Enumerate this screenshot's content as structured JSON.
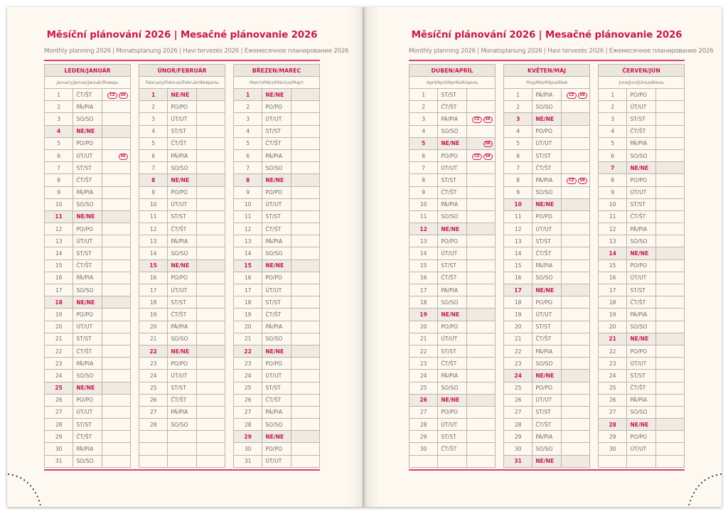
{
  "left_page": {
    "title": "Měsíční plánování 2026 | Mesačné plánovanie 2026",
    "subtitle": "Monthly planning 2026 | Monatsplanung 2026 | Havi tervezés 2026 | Ежемесячное планирование 2026"
  },
  "right_page": {
    "title": "Měsíční plánování 2026 | Mesačné plánovanie 2026",
    "subtitle": "Monthly planning 2026 | Monatsplanung 2026 | Havi tervezés 2026 | Ежемесячное планирование 2026"
  },
  "sunday_label": "NE/NE",
  "colors": {
    "accent": "#c8184f",
    "grid": "#bcb5aa",
    "paper": "#fdf9f0",
    "shade": "#efebe3"
  },
  "months": [
    {
      "name": "LEDEN/JANUÁR",
      "translations": "January/Januar/Január/Январь",
      "days": [
        "ČT/ŠT",
        "PÁ/PIA",
        "SO/SO",
        "NE/NE",
        "PO/PO",
        "ÚT/UT",
        "ST/ST",
        "ČT/ŠT",
        "PÁ/PIA",
        "SO/SO",
        "NE/NE",
        "PO/PO",
        "ÚT/UT",
        "ST/ST",
        "ČT/ŠT",
        "PÁ/PIA",
        "SO/SO",
        "NE/NE",
        "PO/PO",
        "ÚT/UT",
        "ST/ST",
        "ČT/ŠT",
        "PÁ/PIA",
        "SO/SO",
        "NE/NE",
        "PO/PO",
        "ÚT/UT",
        "ST/ST",
        "ČT/ŠT",
        "PÁ/PIA",
        "SO/SO"
      ],
      "holidays": {
        "1": [
          "CZ",
          "SK"
        ],
        "6": [
          "SK"
        ]
      }
    },
    {
      "name": "ÚNOR/FEBRUÁR",
      "translations": "February/Februar/Február/Февраль",
      "days": [
        "NE/NE",
        "PO/PO",
        "ÚT/UT",
        "ST/ST",
        "ČT/ŠT",
        "PÁ/PIA",
        "SO/SO",
        "NE/NE",
        "PO/PO",
        "ÚT/UT",
        "ST/ST",
        "ČT/ŠT",
        "PÁ/PIA",
        "SO/SO",
        "NE/NE",
        "PO/PO",
        "ÚT/UT",
        "ST/ST",
        "ČT/ŠT",
        "PÁ/PIA",
        "SO/SO",
        "NE/NE",
        "PO/PO",
        "ÚT/UT",
        "ST/ST",
        "ČT/ŠT",
        "PÁ/PIA",
        "SO/SO"
      ],
      "holidays": {}
    },
    {
      "name": "BŘEZEN/MAREC",
      "translations": "March/März/Március/Март",
      "days": [
        "NE/NE",
        "PO/PO",
        "ÚT/UT",
        "ST/ST",
        "ČT/ŠT",
        "PÁ/PIA",
        "SO/SO",
        "NE/NE",
        "PO/PO",
        "ÚT/UT",
        "ST/ST",
        "ČT/ŠT",
        "PÁ/PIA",
        "SO/SO",
        "NE/NE",
        "PO/PO",
        "ÚT/UT",
        "ST/ST",
        "ČT/ŠT",
        "PÁ/PIA",
        "SO/SO",
        "NE/NE",
        "PO/PO",
        "ÚT/UT",
        "ST/ST",
        "ČT/ŠT",
        "PÁ/PIA",
        "SO/SO",
        "NE/NE",
        "PO/PO",
        "ÚT/UT"
      ],
      "holidays": {}
    },
    {
      "name": "DUBEN/APRÍL",
      "translations": "April/April/Április/Апрель",
      "days": [
        "ST/ST",
        "ČT/ŠT",
        "PÁ/PIA",
        "SO/SO",
        "NE/NE",
        "PO/PO",
        "ÚT/UT",
        "ST/ST",
        "ČT/ŠT",
        "PÁ/PIA",
        "SO/SO",
        "NE/NE",
        "PO/PO",
        "ÚT/UT",
        "ST/ST",
        "ČT/ŠT",
        "PÁ/PIA",
        "SO/SO",
        "NE/NE",
        "PO/PO",
        "ÚT/UT",
        "ST/ST",
        "ČT/ŠT",
        "PÁ/PIA",
        "SO/SO",
        "NE/NE",
        "PO/PO",
        "ÚT/UT",
        "ST/ST",
        "ČT/ŠT"
      ],
      "holidays": {
        "3": [
          "CZ",
          "SK"
        ],
        "5": [
          "SK"
        ],
        "6": [
          "CZ",
          "SK"
        ]
      }
    },
    {
      "name": "KVĚTEN/MÁJ",
      "translations": "May/Mai/Május/Май",
      "days": [
        "PÁ/PIA",
        "SO/SO",
        "NE/NE",
        "PO/PO",
        "ÚT/UT",
        "ST/ST",
        "ČT/ŠT",
        "PÁ/PIA",
        "SO/SO",
        "NE/NE",
        "PO/PO",
        "ÚT/UT",
        "ST/ST",
        "ČT/ŠT",
        "PÁ/PIA",
        "SO/SO",
        "NE/NE",
        "PO/PO",
        "ÚT/UT",
        "ST/ST",
        "ČT/ŠT",
        "PÁ/PIA",
        "SO/SO",
        "NE/NE",
        "PO/PO",
        "ÚT/UT",
        "ST/ST",
        "ČT/ŠT",
        "PÁ/PIA",
        "SO/SO",
        "NE/NE"
      ],
      "holidays": {
        "1": [
          "CZ",
          "SK"
        ],
        "8": [
          "CZ",
          "SK"
        ]
      }
    },
    {
      "name": "ČERVEN/JÚN",
      "translations": "June/Juni/Június/Июнь",
      "days": [
        "PO/PO",
        "ÚT/UT",
        "ST/ST",
        "ČT/ŠT",
        "PÁ/PIA",
        "SO/SO",
        "NE/NE",
        "PO/PO",
        "ÚT/UT",
        "ST/ST",
        "ČT/ŠT",
        "PÁ/PIA",
        "SO/SO",
        "NE/NE",
        "PO/PO",
        "ÚT/UT",
        "ST/ST",
        "ČT/ŠT",
        "PÁ/PIA",
        "SO/SO",
        "NE/NE",
        "PO/PO",
        "ÚT/UT",
        "ST/ST",
        "ČT/ŠT",
        "PÁ/PIA",
        "SO/SO",
        "NE/NE",
        "PO/PO",
        "ÚT/UT"
      ],
      "holidays": {}
    }
  ]
}
